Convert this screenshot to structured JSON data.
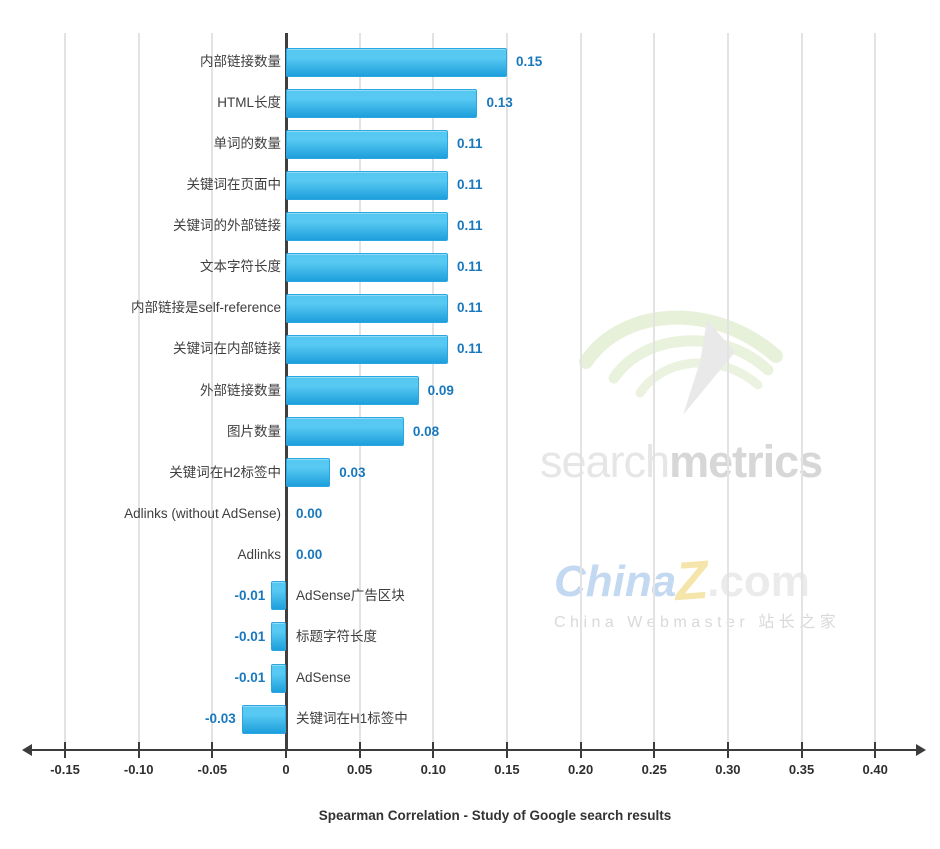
{
  "chart_data": {
    "type": "bar",
    "orientation": "horizontal",
    "title": "Spearman Correlation - Study of Google search results",
    "categories": [
      "内部链接数量",
      "HTML长度",
      "单词的数量",
      "关键词在页面中",
      "关键词的外部链接",
      "文本字符长度",
      "内部链接是self-reference",
      "关键词在内部链接",
      "外部链接数量",
      "图片数量",
      "关键词在H2标签中",
      "Adlinks (without AdSense)",
      "Adlinks",
      "AdSense广告区块",
      "标题字符长度",
      "AdSense",
      "关键词在H1标签中"
    ],
    "values": [
      0.15,
      0.13,
      0.11,
      0.11,
      0.11,
      0.11,
      0.11,
      0.11,
      0.09,
      0.08,
      0.03,
      0.0,
      0.0,
      -0.01,
      -0.01,
      -0.01,
      -0.03
    ],
    "value_labels": [
      "0.15",
      "0.13",
      "0.11",
      "0.11",
      "0.11",
      "0.11",
      "0.11",
      "0.11",
      "0.09",
      "0.08",
      "0.03",
      "0.00",
      "0.00",
      "-0.01",
      "-0.01",
      "-0.01",
      "-0.03"
    ],
    "x_ticks": [
      -0.15,
      -0.1,
      -0.05,
      0,
      0.05,
      0.1,
      0.15,
      0.2,
      0.25,
      0.3,
      0.35,
      0.4
    ],
    "x_tick_labels": [
      "-0.15",
      "-0.10",
      "-0.05",
      "0",
      "0.05",
      "0.10",
      "0.15",
      "0.20",
      "0.25",
      "0.30",
      "0.35",
      "0.40"
    ],
    "xlim": [
      -0.175,
      0.435
    ],
    "grid": true,
    "legend": null,
    "colors": {
      "bar_top": "#56c8f2",
      "bar_bottom": "#1e9fdc",
      "bar_border": "#2aa6e0",
      "value_label": "#1878be",
      "axis": "#3c3c3c",
      "gridline": "#e3e3e3",
      "category_label": "#3e3e3e"
    }
  },
  "watermarks": {
    "searchmetrics": {
      "light": "search",
      "bold": "metrics"
    },
    "chinaz": {
      "word1": "China",
      "word2": "Z",
      "word3": ".com",
      "subtitle": "China Webmaster 站长之家"
    }
  }
}
